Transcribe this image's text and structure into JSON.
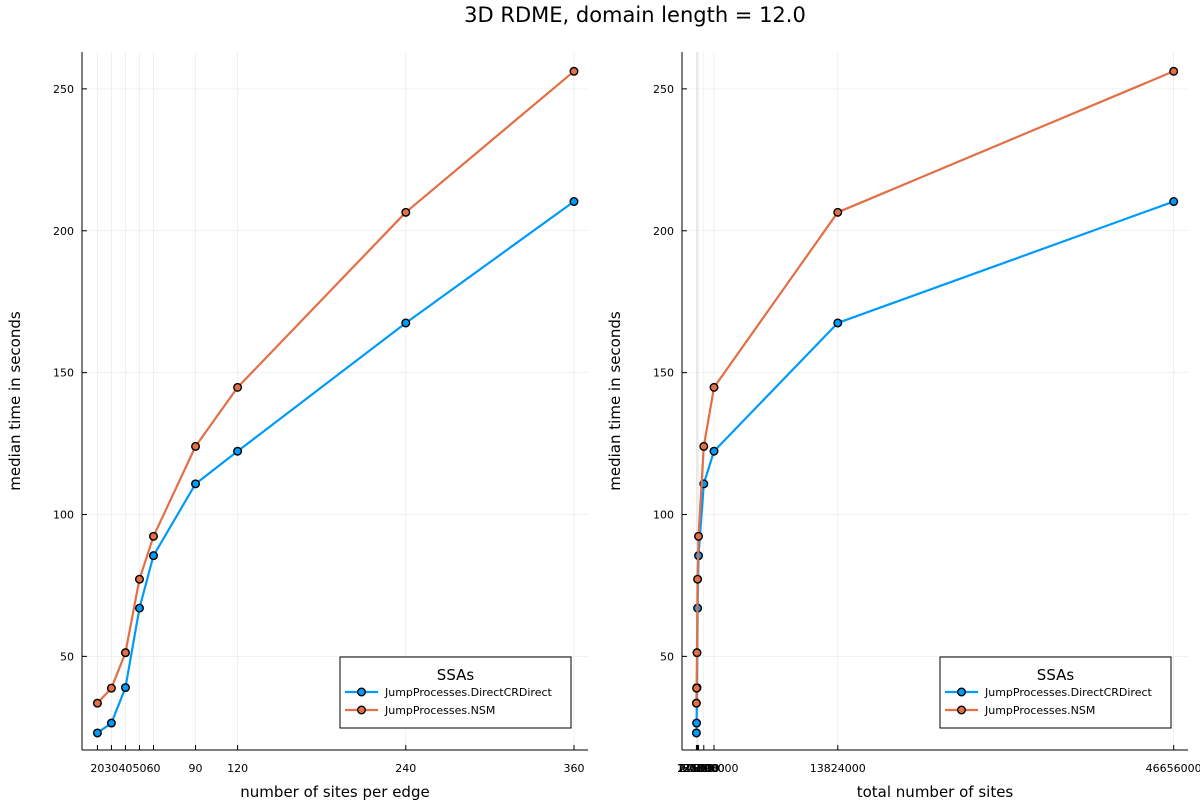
{
  "title": "3D RDME, domain length = 12.0",
  "colors": {
    "series_1": "#009AFA",
    "series_2": "#E26F46",
    "grid": "#E6E6E6",
    "axis": "#000000"
  },
  "chart_data": [
    {
      "type": "line",
      "xlabel": "number of sites per edge",
      "ylabel": "median time in seconds",
      "xlim": [
        9,
        370
      ],
      "ylim": [
        17,
        263
      ],
      "x_ticks": [
        20,
        30,
        40,
        50,
        60,
        90,
        120,
        240,
        360
      ],
      "x_tick_labels": [
        "20",
        "30",
        "40",
        "50",
        "60",
        "90",
        "120",
        "240",
        "360"
      ],
      "y_ticks": [
        50,
        100,
        150,
        200,
        250
      ],
      "y_tick_labels": [
        "50",
        "100",
        "150",
        "200",
        "250"
      ],
      "grid": true,
      "legend": {
        "title": "SSAs",
        "position": "bottom-right"
      },
      "x": [
        20,
        30,
        40,
        50,
        60,
        90,
        120,
        240,
        360
      ],
      "series": [
        {
          "name": "JumpProcesses.DirectCRDirect",
          "values": [
            23,
            26.5,
            39,
            67,
            85.5,
            110.8,
            122.3,
            167.5,
            210.3
          ]
        },
        {
          "name": "JumpProcesses.NSM",
          "values": [
            33.5,
            38.8,
            51.3,
            77.2,
            92.3,
            124,
            144.8,
            206.5,
            256.2
          ]
        }
      ]
    },
    {
      "type": "line",
      "xlabel": "total number of sites",
      "ylabel": "median time in seconds",
      "xlim": [
        -1400000,
        48055000
      ],
      "ylim": [
        17,
        263
      ],
      "x_ticks": [
        8000,
        27000,
        64000,
        125000,
        216000,
        729000,
        1728000,
        13824000,
        46656000
      ],
      "x_tick_labels": [
        "8000",
        "27000",
        "64000",
        "125000",
        "216000",
        "729000",
        "1728000",
        "13824000",
        "46656000"
      ],
      "grid": true,
      "legend": {
        "title": "SSAs",
        "position": "bottom-right"
      },
      "y_ticks": [
        50,
        100,
        150,
        200,
        250
      ],
      "y_tick_labels": [
        "50",
        "100",
        "150",
        "200",
        "250"
      ],
      "x": [
        8000,
        27000,
        64000,
        125000,
        216000,
        729000,
        1728000,
        13824000,
        46656000
      ],
      "series": [
        {
          "name": "JumpProcesses.DirectCRDirect",
          "values": [
            23,
            26.5,
            39,
            67,
            85.5,
            110.8,
            122.3,
            167.5,
            210.3
          ]
        },
        {
          "name": "JumpProcesses.NSM",
          "values": [
            33.5,
            38.8,
            51.3,
            77.2,
            92.3,
            124,
            144.8,
            206.5,
            256.2
          ]
        }
      ]
    }
  ]
}
